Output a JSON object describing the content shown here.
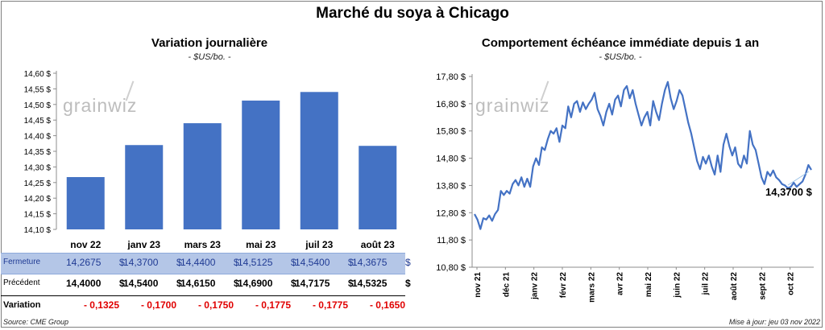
{
  "main_title": "Marché du soya à Chicago",
  "left_panel": {
    "title": "Variation journalière",
    "unit": "- $US/bo. -",
    "watermark": "grainwiz"
  },
  "right_panel": {
    "title": "Comportement échéance immédiate depuis 1 an",
    "unit": "- $US/bo. -",
    "watermark": "grainwiz",
    "last_value_label": "14,3700 $"
  },
  "table": {
    "rows": [
      {
        "label": "Fermeture",
        "values": [
          "14,2675",
          "14,3700",
          "14,4400",
          "14,5125",
          "14,5400",
          "14,3675"
        ],
        "currency": "$"
      },
      {
        "label": "Précédent",
        "values": [
          "14,4000",
          "14,5400",
          "14,6150",
          "14,6900",
          "14,7175",
          "14,5325"
        ],
        "currency": "$"
      },
      {
        "label": "Variation",
        "values": [
          "- 0,1325",
          "- 0,1700",
          "- 0,1750",
          "- 0,1775",
          "- 0,1775",
          "- 0,1650"
        ],
        "currency": ""
      }
    ]
  },
  "footer": {
    "source": "Source: CME Group",
    "updated": "Mise à jour: jeu 03 nov 2022"
  },
  "colors": {
    "bar": "#4472c4",
    "line": "#4472c4",
    "fermeture_bg": "#b4c6e7",
    "fermeture_text": "#1f3a93",
    "negative": "#e00000"
  },
  "chart_data": [
    {
      "type": "bar",
      "title": "Variation journalière",
      "categories": [
        "nov 22",
        "janv 23",
        "mars 23",
        "mai 23",
        "juil 23",
        "août 23"
      ],
      "values": [
        14.2675,
        14.37,
        14.44,
        14.5125,
        14.54,
        14.3675
      ],
      "ylim": [
        14.1,
        14.6
      ],
      "yticks": [
        "14,60 $",
        "14,55 $",
        "14,50 $",
        "14,45 $",
        "14,40 $",
        "14,35 $",
        "14,30 $",
        "14,25 $",
        "14,20 $",
        "14,15 $",
        "14,10 $"
      ],
      "grid": false,
      "legend": "none"
    },
    {
      "type": "line",
      "title": "Comportement échéance immédiate depuis 1 an",
      "x_labels": [
        "nov 21",
        "déc 21",
        "janv 22",
        "févr 22",
        "mars 22",
        "avr 22",
        "mai 22",
        "juin 22",
        "juil 22",
        "août 22",
        "sept 22",
        "oct 22"
      ],
      "ylim": [
        10.8,
        17.8
      ],
      "yticks": [
        "17,80 $",
        "16,80 $",
        "15,80 $",
        "14,80 $",
        "13,80 $",
        "12,80 $",
        "11,80 $",
        "10,80 $"
      ],
      "series": [
        {
          "values": [
            12.75,
            12.55,
            12.2,
            12.6,
            12.55,
            12.7,
            12.5,
            12.75,
            12.9,
            13.6,
            13.45,
            13.6,
            13.5,
            13.85,
            14.0,
            13.8,
            14.1,
            13.75,
            14.05,
            13.75,
            14.5,
            14.8,
            14.55,
            15.2,
            15.1,
            15.5,
            15.8,
            15.7,
            15.9,
            15.4,
            16.0,
            15.9,
            16.7,
            16.3,
            16.8,
            16.9,
            16.5,
            16.85,
            16.6,
            16.8,
            16.95,
            17.2,
            16.6,
            16.35,
            16.0,
            16.5,
            16.8,
            16.4,
            16.95,
            17.1,
            16.7,
            17.3,
            17.45,
            17.0,
            17.3,
            16.8,
            16.4,
            16.0,
            16.3,
            16.5,
            16.0,
            16.9,
            16.5,
            16.2,
            16.8,
            17.3,
            17.6,
            17.0,
            16.6,
            16.9,
            17.3,
            17.1,
            16.6,
            16.1,
            15.7,
            15.2,
            14.7,
            14.4,
            14.85,
            14.6,
            14.9,
            14.5,
            14.2,
            14.9,
            14.3,
            15.3,
            15.7,
            15.25,
            14.9,
            15.2,
            14.6,
            14.45,
            14.9,
            14.6,
            15.8,
            15.3,
            15.1,
            14.6,
            14.1,
            13.85,
            14.3,
            14.15,
            14.35,
            14.1,
            14.0,
            13.85,
            13.8,
            13.7,
            13.75,
            13.9,
            13.75,
            13.85,
            13.95,
            14.2,
            14.55,
            14.37
          ]
        }
      ],
      "last_value": 14.37,
      "grid": false,
      "legend": "none"
    }
  ]
}
